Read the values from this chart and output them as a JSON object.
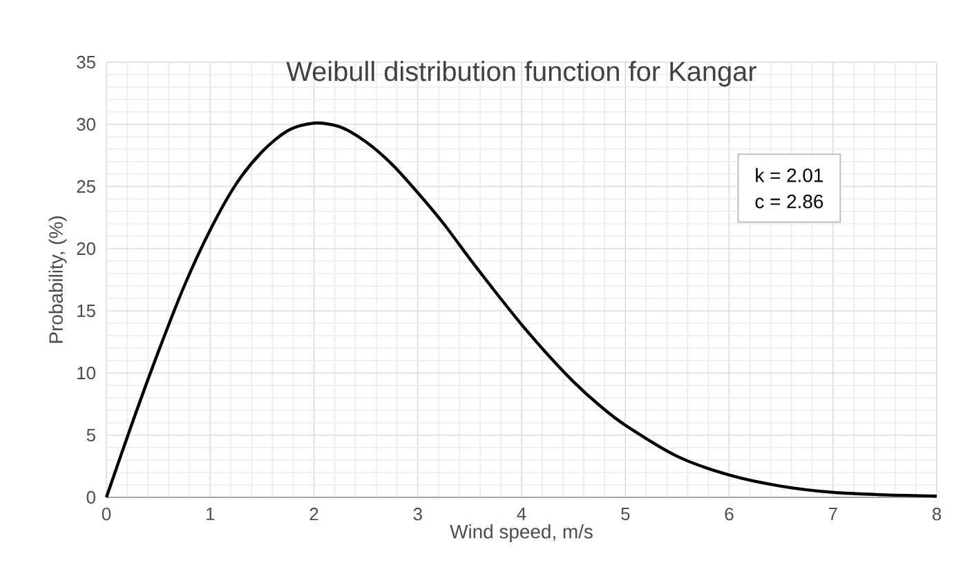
{
  "chart_data": {
    "type": "line",
    "title": "Weibull distribution function for Kangar",
    "xlabel": "Wind speed, m/s",
    "ylabel": "Probability, (%)",
    "x": [
      0,
      0.25,
      0.5,
      0.75,
      1,
      1.25,
      1.5,
      1.75,
      2,
      2.25,
      2.5,
      2.75,
      3,
      3.25,
      3.5,
      3.75,
      4,
      4.25,
      4.5,
      4.75,
      5,
      5.5,
      6,
      6.5,
      7,
      7.5,
      8
    ],
    "series": [
      {
        "color": "#000000",
        "values": [
          0,
          6.0,
          11.7,
          17.0,
          21.5,
          25.2,
          27.8,
          29.5,
          30.1,
          29.8,
          28.6,
          26.8,
          24.5,
          22.0,
          19.2,
          16.5,
          13.9,
          11.5,
          9.3,
          7.4,
          5.8,
          3.3,
          1.8,
          0.9,
          0.4,
          0.2,
          0.1
        ]
      }
    ],
    "xlim": [
      0,
      8
    ],
    "xticks": [
      0,
      1,
      2,
      3,
      4,
      5,
      6,
      7,
      8
    ],
    "ylim": [
      0,
      35
    ],
    "yticks": [
      0,
      5,
      10,
      15,
      20,
      25,
      30,
      35
    ],
    "annotations": [
      "k = 2.01",
      "c = 2.86"
    ],
    "grid": true,
    "marker": "none",
    "line_style": "solid"
  }
}
